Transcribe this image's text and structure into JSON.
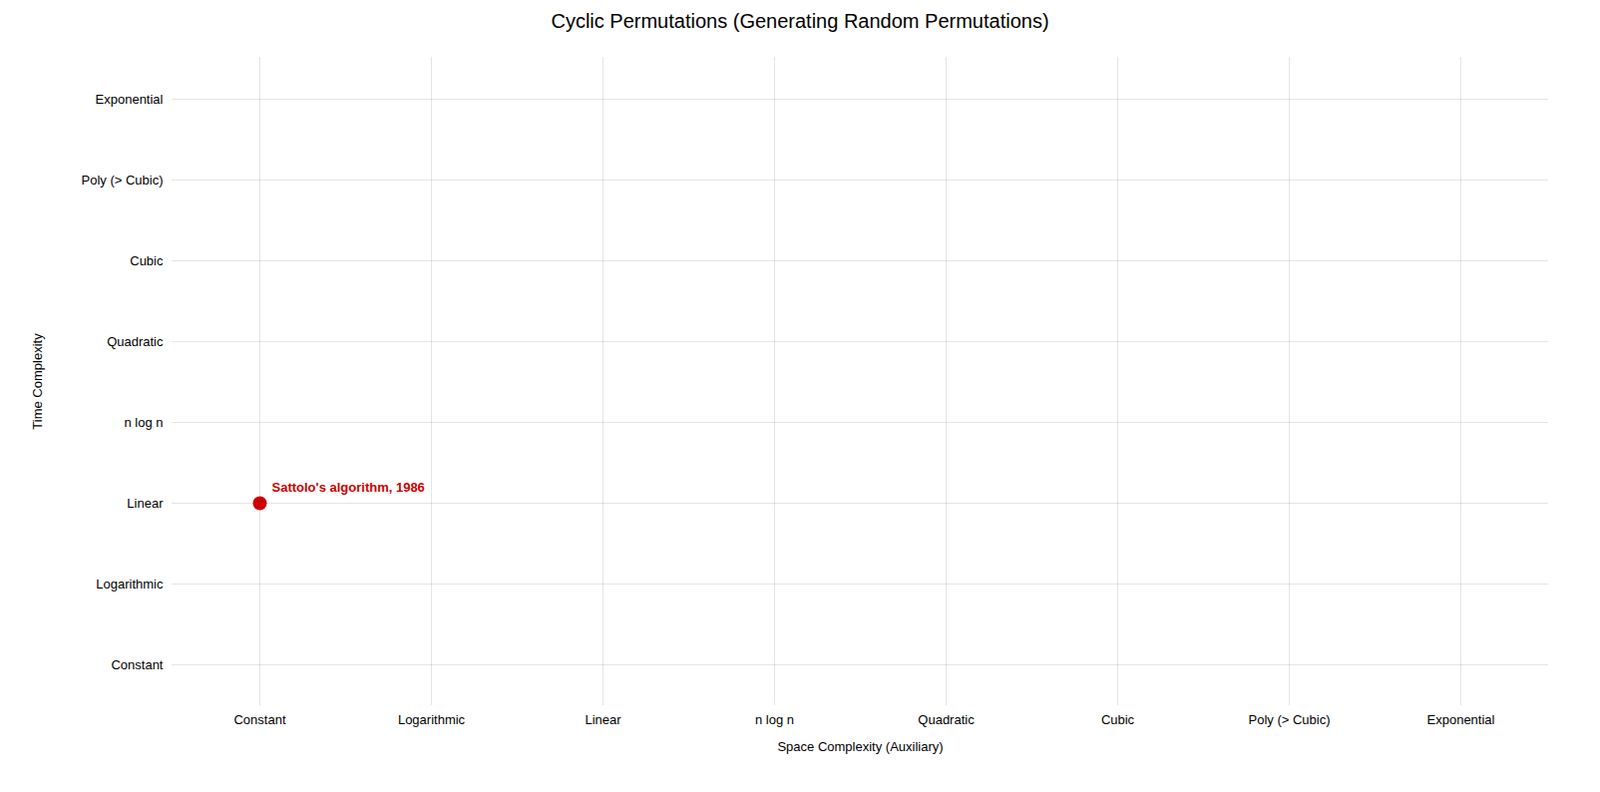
{
  "chart_data": {
    "type": "scatter",
    "title": "Cyclic Permutations (Generating Random Permutations)",
    "xlabel": "Space Complexity (Auxiliary)",
    "ylabel": "Time Complexity",
    "x_categories": [
      "Constant",
      "Logarithmic",
      "Linear",
      "n log n",
      "Quadratic",
      "Cubic",
      "Poly (> Cubic)",
      "Exponential"
    ],
    "y_categories": [
      "Constant",
      "Logarithmic",
      "Linear",
      "n log n",
      "Quadratic",
      "Cubic",
      "Poly (> Cubic)",
      "Exponential"
    ],
    "points": [
      {
        "x": "Constant",
        "y": "Linear",
        "label": "Sattolo's algorithm, 1986",
        "color": "#cc0000"
      }
    ],
    "grid": true
  }
}
